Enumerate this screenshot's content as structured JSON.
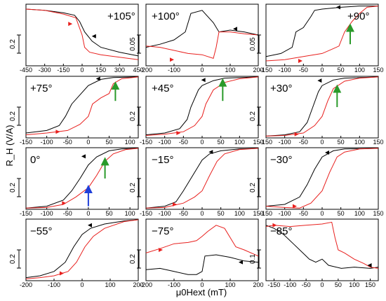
{
  "colors": {
    "sweep_down": "#000000",
    "sweep_up": "#e8201e",
    "green_arrow": "#2a9a2a",
    "blue_arrow": "#1f3fd9"
  },
  "axis_labels": {
    "y": "R_H (V/A)",
    "x": "μ0Hext (mT)"
  },
  "chart_data": [
    {
      "type": "line",
      "angle_label": "+105°",
      "xlim": [
        -450,
        450
      ],
      "xticks": [
        "-450",
        "-300",
        "-150",
        "0",
        "150",
        "300",
        "450"
      ],
      "scale_bar": "0.2",
      "series": [
        {
          "color": "black",
          "x": [
            -450,
            -300,
            -150,
            -60,
            -20,
            20,
            80,
            150,
            300,
            450
          ],
          "y": [
            0.92,
            0.9,
            0.86,
            0.82,
            0.72,
            0.55,
            0.4,
            0.3,
            0.22,
            0.16
          ]
        },
        {
          "color": "red",
          "x": [
            -450,
            -300,
            -150,
            -50,
            0,
            20,
            60,
            150,
            300,
            450
          ],
          "y": [
            0.92,
            0.9,
            0.84,
            0.78,
            0.5,
            0.3,
            0.22,
            0.18,
            0.14,
            0.1
          ]
        }
      ],
      "markers": {
        "black_arrow": [
          100,
          0.48
        ],
        "red_arrow": [
          -100,
          0.68
        ]
      }
    },
    {
      "type": "line",
      "angle_label": "+100°",
      "xlim": [
        -200,
        200
      ],
      "xticks": [
        "-200",
        "-100",
        "0",
        "100",
        "200"
      ],
      "scale_bar": "0.05",
      "series": [
        {
          "color": "black",
          "x": [
            -200,
            -150,
            -100,
            -60,
            -40,
            0,
            40,
            60,
            100,
            150,
            200
          ],
          "y": [
            0.3,
            0.35,
            0.42,
            0.55,
            0.85,
            0.9,
            0.7,
            0.55,
            0.58,
            0.55,
            0.5
          ]
        },
        {
          "color": "red",
          "x": [
            -200,
            -150,
            -100,
            -50,
            0,
            40,
            50,
            60,
            100,
            150,
            200
          ],
          "y": [
            0.32,
            0.3,
            0.25,
            0.2,
            0.18,
            0.12,
            0.3,
            0.55,
            0.55,
            0.52,
            0.5
          ]
        }
      ],
      "markers": {
        "black_arrow": [
          120,
          0.6
        ],
        "red_arrow": [
          -110,
          0.1
        ]
      }
    },
    {
      "type": "line",
      "angle_label": "+90°",
      "xlim": [
        -150,
        150
      ],
      "xticks": [
        "-150",
        "-100",
        "-50",
        "0",
        "50",
        "100",
        "150"
      ],
      "scale_bar": "0.05",
      "series": [
        {
          "color": "black",
          "x": [
            -150,
            -110,
            -80,
            -70,
            -50,
            -30,
            -20,
            0,
            50,
            100,
            150
          ],
          "y": [
            0.15,
            0.2,
            0.3,
            0.55,
            0.62,
            0.8,
            0.9,
            0.92,
            0.95,
            0.97,
            0.97
          ]
        },
        {
          "color": "red",
          "x": [
            -150,
            -100,
            -50,
            0,
            30,
            45,
            60,
            80,
            100,
            120,
            150
          ],
          "y": [
            0.08,
            0.1,
            0.15,
            0.2,
            0.28,
            0.32,
            0.55,
            0.72,
            0.85,
            0.95,
            0.97
          ]
        }
      ],
      "markers": {
        "black_arrow": [
          45,
          0.95
        ],
        "red_arrow": [
          -60,
          0.08
        ]
      }
    },
    {
      "type": "line",
      "angle_label": "+75°",
      "xlim": [
        -150,
        120
      ],
      "xticks": [
        "-150",
        "-100",
        "-50",
        "0",
        "50",
        "100"
      ],
      "scale_bar": "0.2",
      "series": [
        {
          "color": "black",
          "x": [
            -150,
            -100,
            -70,
            -55,
            -40,
            -20,
            0,
            30,
            60,
            120
          ],
          "y": [
            0.08,
            0.12,
            0.2,
            0.35,
            0.55,
            0.7,
            0.85,
            0.95,
            0.98,
            0.99
          ]
        },
        {
          "color": "red",
          "x": [
            -150,
            -100,
            -50,
            -20,
            0,
            10,
            30,
            50,
            60,
            80,
            120
          ],
          "y": [
            0.05,
            0.08,
            0.12,
            0.22,
            0.35,
            0.55,
            0.65,
            0.72,
            0.88,
            0.96,
            0.99
          ]
        }
      ],
      "markers": {
        "black_arrow": [
          25,
          0.96
        ],
        "red_arrow": [
          -75,
          0.1
        ]
      }
    },
    {
      "type": "line",
      "angle_label": "+45°",
      "xlim": [
        -150,
        150
      ],
      "xticks": [
        "-150",
        "-100",
        "-50",
        "0",
        "50",
        "100",
        "150"
      ],
      "scale_bar": "0.2",
      "series": [
        {
          "color": "black",
          "x": [
            -150,
            -100,
            -60,
            -40,
            -30,
            -10,
            0,
            30,
            60,
            150
          ],
          "y": [
            0.05,
            0.08,
            0.15,
            0.3,
            0.5,
            0.78,
            0.85,
            0.93,
            0.97,
            0.99
          ]
        },
        {
          "color": "red",
          "x": [
            -150,
            -100,
            -50,
            -20,
            0,
            10,
            30,
            60,
            100,
            150
          ],
          "y": [
            0.04,
            0.06,
            0.1,
            0.2,
            0.35,
            0.55,
            0.78,
            0.9,
            0.96,
            0.99
          ]
        }
      ],
      "markers": {
        "black_arrow": [
          5,
          0.94
        ],
        "red_arrow": [
          -65,
          0.08
        ]
      }
    },
    {
      "type": "line",
      "angle_label": "+30°",
      "xlim": [
        -150,
        150
      ],
      "xticks": [
        "-150",
        "-100",
        "-50",
        "0",
        "50",
        "100",
        "150"
      ],
      "scale_bar": "0.2",
      "series": [
        {
          "color": "black",
          "x": [
            -150,
            -100,
            -60,
            -40,
            -25,
            -10,
            0,
            30,
            60,
            150
          ],
          "y": [
            0.03,
            0.05,
            0.1,
            0.25,
            0.5,
            0.75,
            0.85,
            0.94,
            0.97,
            0.99
          ]
        },
        {
          "color": "red",
          "x": [
            -150,
            -100,
            -50,
            -20,
            0,
            15,
            30,
            60,
            100,
            150
          ],
          "y": [
            0.03,
            0.04,
            0.08,
            0.2,
            0.35,
            0.6,
            0.8,
            0.92,
            0.97,
            0.99
          ]
        }
      ],
      "markers": {
        "black_arrow": [
          -5,
          0.93
        ],
        "red_arrow": [
          -70,
          0.06
        ]
      }
    },
    {
      "type": "line",
      "angle_label": "0°",
      "xlim": [
        -150,
        120
      ],
      "xticks": [
        "-150",
        "-100",
        "-50",
        "0",
        "50",
        "100"
      ],
      "scale_bar": "0.2",
      "series": [
        {
          "color": "black",
          "x": [
            -150,
            -100,
            -60,
            -40,
            -20,
            0,
            20,
            50,
            80,
            120
          ],
          "y": [
            0.02,
            0.05,
            0.15,
            0.3,
            0.5,
            0.72,
            0.85,
            0.95,
            0.98,
            0.99
          ]
        },
        {
          "color": "red",
          "x": [
            -150,
            -100,
            -60,
            -30,
            0,
            20,
            40,
            60,
            90,
            120
          ],
          "y": [
            0.02,
            0.03,
            0.08,
            0.2,
            0.35,
            0.55,
            0.78,
            0.9,
            0.97,
            0.99
          ]
        }
      ],
      "markers": {
        "black_arrow": [
          -10,
          0.86
        ],
        "red_arrow": [
          -60,
          0.1
        ]
      }
    },
    {
      "type": "line",
      "angle_label": "−15°",
      "xlim": [
        -150,
        150
      ],
      "xticks": [
        "-150",
        "-100",
        "-50",
        "0",
        "50",
        "100",
        "150"
      ],
      "scale_bar": "0.2",
      "series": [
        {
          "color": "black",
          "x": [
            -150,
            -100,
            -70,
            -50,
            -30,
            -10,
            0,
            20,
            50,
            100,
            150
          ],
          "y": [
            0.02,
            0.05,
            0.12,
            0.3,
            0.5,
            0.7,
            0.8,
            0.9,
            0.95,
            0.98,
            0.99
          ]
        },
        {
          "color": "red",
          "x": [
            -150,
            -100,
            -50,
            -20,
            0,
            20,
            40,
            60,
            100,
            150
          ],
          "y": [
            0.02,
            0.03,
            0.1,
            0.2,
            0.3,
            0.55,
            0.78,
            0.9,
            0.97,
            0.99
          ]
        }
      ],
      "markers": {
        "black_arrow": [
          25,
          0.93
        ],
        "red_arrow": [
          -75,
          0.08
        ]
      }
    },
    {
      "type": "line",
      "angle_label": "−30°",
      "xlim": [
        -150,
        150
      ],
      "xticks": [
        "-150",
        "-100",
        "-50",
        "0",
        "50",
        "100",
        "150"
      ],
      "scale_bar": "0.2",
      "series": [
        {
          "color": "black",
          "x": [
            -150,
            -100,
            -60,
            -40,
            -20,
            0,
            30,
            60,
            150
          ],
          "y": [
            0.05,
            0.08,
            0.2,
            0.4,
            0.65,
            0.85,
            0.95,
            0.98,
            0.99
          ]
        },
        {
          "color": "red",
          "x": [
            -150,
            -100,
            -60,
            -30,
            0,
            20,
            40,
            60,
            100,
            150
          ],
          "y": [
            0.05,
            0.03,
            0.02,
            0.1,
            0.3,
            0.6,
            0.85,
            0.93,
            0.98,
            0.99
          ]
        }
      ],
      "markers": {
        "black_arrow": [
          15,
          0.92
        ],
        "red_arrow": [
          -75,
          0.05
        ]
      }
    },
    {
      "type": "line",
      "angle_label": "−55°",
      "xlim": [
        -200,
        200
      ],
      "xticks": [
        "-200",
        "-100",
        "0",
        "100",
        "200"
      ],
      "scale_bar": "0.2",
      "series": [
        {
          "color": "black",
          "x": [
            -200,
            -150,
            -100,
            -60,
            -30,
            0,
            30,
            80,
            150,
            200
          ],
          "y": [
            0.05,
            0.08,
            0.15,
            0.3,
            0.55,
            0.75,
            0.85,
            0.92,
            0.97,
            0.99
          ]
        },
        {
          "color": "red",
          "x": [
            -200,
            -150,
            -100,
            -50,
            -20,
            10,
            40,
            80,
            150,
            200
          ],
          "y": [
            0.03,
            0.05,
            0.08,
            0.15,
            0.3,
            0.55,
            0.72,
            0.85,
            0.96,
            0.99
          ]
        }
      ],
      "markers": {
        "black_arrow": [
          30,
          0.9
        ],
        "red_arrow": [
          -75,
          0.12
        ]
      }
    },
    {
      "type": "line",
      "angle_label": "−75°",
      "xlim": [
        -200,
        200
      ],
      "xticks": [
        "-200",
        "-100",
        "0",
        "100",
        "200"
      ],
      "scale_bar": "0.2",
      "series": [
        {
          "color": "black",
          "x": [
            -200,
            -150,
            -100,
            -50,
            -20,
            0,
            10,
            50,
            100,
            150,
            200
          ],
          "y": [
            0.18,
            0.2,
            0.15,
            0.1,
            0.1,
            0.15,
            0.4,
            0.42,
            0.38,
            0.32,
            0.3
          ]
        },
        {
          "color": "red",
          "x": [
            -200,
            -150,
            -100,
            -50,
            -20,
            0,
            20,
            50,
            80,
            120,
            150,
            200
          ],
          "y": [
            0.45,
            0.52,
            0.6,
            0.62,
            0.65,
            0.72,
            0.8,
            0.9,
            0.85,
            0.55,
            0.5,
            0.4
          ]
        }
      ],
      "markers": {
        "black_arrow": [
          140,
          0.3
        ],
        "red_arrow": [
          -150,
          0.5
        ]
      }
    },
    {
      "type": "line",
      "angle_label": "−85°",
      "xlim": [
        -175,
        175
      ],
      "xticks": [
        "-150",
        "-100",
        "-50",
        "0",
        "50",
        "100",
        "150"
      ],
      "scale_bar": "0.1",
      "series": [
        {
          "color": "black",
          "x": [
            -175,
            -150,
            -120,
            -90,
            -60,
            -40,
            -20,
            0,
            20,
            60,
            100,
            150,
            175
          ],
          "y": [
            0.9,
            0.85,
            0.75,
            0.6,
            0.45,
            0.35,
            0.3,
            0.35,
            0.25,
            0.2,
            0.22,
            0.2,
            0.22
          ]
        },
        {
          "color": "red",
          "x": [
            -175,
            -150,
            -100,
            -50,
            0,
            30,
            40,
            50,
            70,
            100,
            130,
            150,
            175
          ],
          "y": [
            0.88,
            0.9,
            0.88,
            0.9,
            0.92,
            0.95,
            0.7,
            0.5,
            0.45,
            0.35,
            0.28,
            0.22,
            0.2
          ]
        }
      ],
      "markers": {
        "black_arrow": [
          150,
          0.25
        ],
        "red_arrow": [
          -150,
          0.9
        ]
      }
    }
  ],
  "annotations": [
    {
      "panel": 2,
      "type": "green-arrow",
      "x": 75,
      "y0": 0.35,
      "y1": 0.62
    },
    {
      "panel": 3,
      "type": "green-arrow",
      "x": 65,
      "y0": 0.6,
      "y1": 0.85
    },
    {
      "panel": 4,
      "type": "green-arrow",
      "x": 55,
      "y0": 0.6,
      "y1": 0.9
    },
    {
      "panel": 5,
      "type": "green-arrow",
      "x": 40,
      "y0": 0.5,
      "y1": 0.8
    },
    {
      "panel": 6,
      "type": "green-arrow",
      "x": 40,
      "y0": 0.5,
      "y1": 0.78
    },
    {
      "panel": 6,
      "type": "blue-arrow",
      "x": 0,
      "y0": 0.05,
      "y1": 0.33
    }
  ]
}
